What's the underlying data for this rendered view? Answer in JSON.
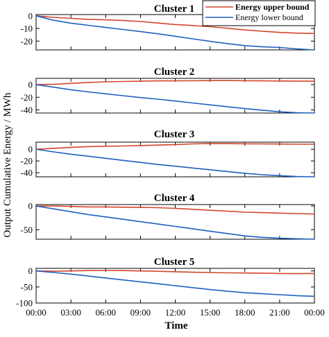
{
  "chart_data": {
    "type": "line",
    "xlabel": "Time",
    "ylabel": "Output Cumulative Energy / MWh",
    "x_ticks": [
      "00:00",
      "03:00",
      "06:00",
      "09:00",
      "12:00",
      "15:00",
      "18:00",
      "21:00",
      "00:00"
    ],
    "x_hours": [
      0,
      1.5,
      3,
      4.5,
      6,
      7.5,
      9,
      10.5,
      12,
      13.5,
      15,
      16.5,
      18,
      19.5,
      21,
      22.5,
      24
    ],
    "legend": {
      "placement": "top-right",
      "entries": [
        {
          "label": "Energy upper bound",
          "color": "#d2452a",
          "bold": true
        },
        {
          "label": "Energy lower bound",
          "color": "#1f5fbf",
          "bold": false
        }
      ]
    },
    "panels": [
      {
        "title": "Cluster 1",
        "ylim": [
          -27,
          1
        ],
        "yticks": [
          "0",
          "-10",
          "-20"
        ],
        "ytick_values": [
          0,
          -10,
          -20
        ],
        "series": [
          {
            "name": "Energy upper bound",
            "color": "#d2452a",
            "values": [
              0,
              -1.2,
              -2,
              -2.8,
              -3.2,
              -3.7,
              -4.5,
              -5.7,
              -6.9,
              -7.7,
              -8.6,
              -9.8,
              -11.2,
              -12.2,
              -13.1,
              -13.7,
              -14
            ]
          },
          {
            "name": "Energy lower bound",
            "color": "#1f5fbf",
            "values": [
              0,
              -3.5,
              -5.8,
              -7.5,
              -9.2,
              -10.8,
              -12.5,
              -14.2,
              -16.2,
              -18.2,
              -20.2,
              -22,
              -23.6,
              -24.5,
              -25.1,
              -26.2,
              -27
            ]
          }
        ]
      },
      {
        "title": "Cluster 2",
        "ylim": [
          -45,
          10
        ],
        "yticks": [
          "0",
          "-20",
          "-40"
        ],
        "ytick_values": [
          0,
          -20,
          -40
        ],
        "series": [
          {
            "name": "Energy upper bound",
            "color": "#d2452a",
            "values": [
              0,
              0.5,
              2,
              3.5,
              4.5,
              5,
              5.5,
              6,
              6,
              6.2,
              6.5,
              6.6,
              6.3,
              6,
              5.8,
              5.7,
              5.5
            ]
          },
          {
            "name": "Energy lower bound",
            "color": "#1f5fbf",
            "values": [
              0,
              -4,
              -8,
              -11.5,
              -14.5,
              -17.5,
              -20.5,
              -23,
              -26,
              -29,
              -32,
              -35,
              -38,
              -40.5,
              -43,
              -44.5,
              -45
            ]
          }
        ]
      },
      {
        "title": "Cluster 3",
        "ylim": [
          -47,
          12
        ],
        "yticks": [
          "0",
          "-20",
          "-40"
        ],
        "ytick_values": [
          0,
          -20,
          -40
        ],
        "series": [
          {
            "name": "Energy upper bound",
            "color": "#d2452a",
            "values": [
              0,
              1.5,
              3,
              4.5,
              5,
              5.5,
              6.2,
              7,
              7.8,
              9,
              9.5,
              9.5,
              9.2,
              9,
              8.8,
              8.5,
              8.5
            ]
          },
          {
            "name": "Energy lower bound",
            "color": "#1f5fbf",
            "values": [
              0,
              -4.5,
              -8.5,
              -12,
              -15.5,
              -19,
              -22.5,
              -26,
              -29,
              -32,
              -35,
              -38,
              -41,
              -43.5,
              -45,
              -46.5,
              -47
            ]
          }
        ]
      },
      {
        "title": "Cluster 4",
        "ylim": [
          -70,
          3
        ],
        "yticks": [
          "0",
          "-50"
        ],
        "ytick_values": [
          0,
          -50
        ],
        "series": [
          {
            "name": "Energy upper bound",
            "color": "#d2452a",
            "values": [
              0,
              0,
              -1,
              -2,
              -2,
              -2.5,
              -3,
              -3.5,
              -5,
              -7,
              -9,
              -11,
              -13,
              -14,
              -15,
              -16,
              -17
            ]
          },
          {
            "name": "Energy lower bound",
            "color": "#1f5fbf",
            "values": [
              0,
              -6,
              -12,
              -18,
              -23,
              -28,
              -33,
              -38,
              -43,
              -48,
              -53,
              -58,
              -63,
              -66,
              -68,
              -69,
              -70
            ]
          }
        ]
      },
      {
        "title": "Cluster 5",
        "ylim": [
          -100,
          8
        ],
        "yticks": [
          "0",
          "-50",
          "-100"
        ],
        "ytick_values": [
          0,
          -50,
          -100
        ],
        "series": [
          {
            "name": "Energy upper bound",
            "color": "#d2452a",
            "values": [
              0,
              -1,
              0,
              1,
              1.5,
              1,
              0,
              -1,
              -2.5,
              -4,
              -5,
              -6,
              -6.5,
              -7,
              -8,
              -8.5,
              -8
            ]
          },
          {
            "name": "Energy lower bound",
            "color": "#1f5fbf",
            "values": [
              0,
              -5,
              -10,
              -16,
              -22,
              -28,
              -34,
              -40,
              -46,
              -52,
              -58,
              -63,
              -68,
              -71,
              -74,
              -77,
              -79
            ]
          }
        ]
      }
    ]
  }
}
